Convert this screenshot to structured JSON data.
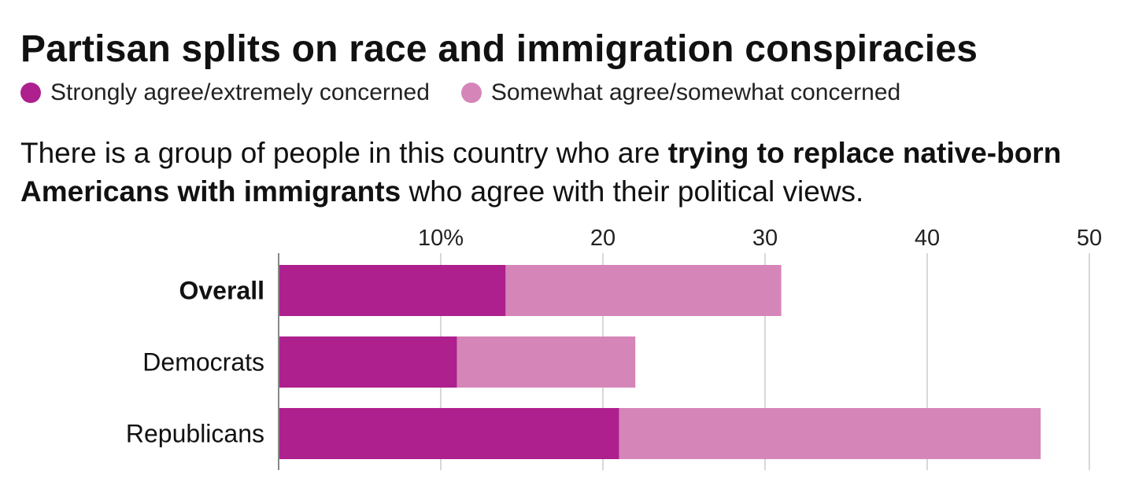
{
  "chart_data": {
    "type": "bar",
    "orientation": "horizontal",
    "stacked": true,
    "title": "Partisan splits on race and immigration conspiracies",
    "question": {
      "part1": "There is a group of people in this country who are ",
      "bold1": "trying to replace native-born Americans with immigrants",
      "part2": " who agree with their political views."
    },
    "categories": [
      "Overall",
      "Democrats",
      "Republicans"
    ],
    "bold_categories": [
      "Overall"
    ],
    "series": [
      {
        "name": "Strongly agree/extremely concerned",
        "color": "#ae208d",
        "values": [
          14,
          11,
          21
        ]
      },
      {
        "name": "Somewhat agree/somewhat concerned",
        "color": "#d685b9",
        "values": [
          17,
          11,
          26
        ]
      }
    ],
    "xlim": [
      0,
      50
    ],
    "xticks": [
      {
        "value": 10,
        "label": "10%"
      },
      {
        "value": 20,
        "label": "20"
      },
      {
        "value": 30,
        "label": "30"
      },
      {
        "value": 40,
        "label": "40"
      },
      {
        "value": 50,
        "label": "50"
      }
    ],
    "grid": true,
    "legend_position": "top"
  }
}
